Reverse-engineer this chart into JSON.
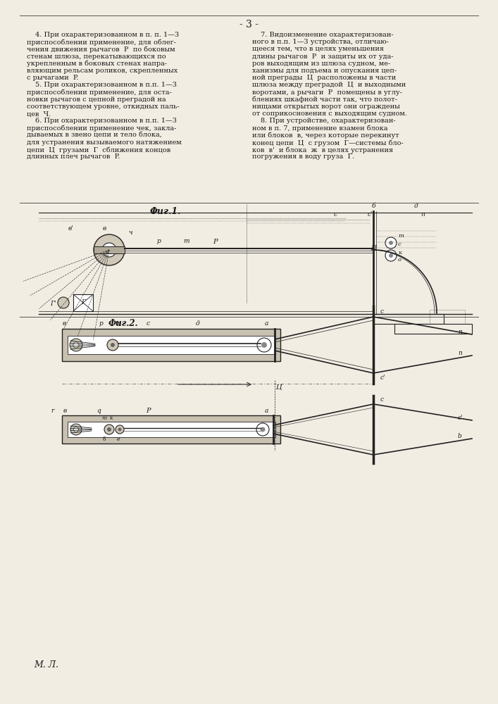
{
  "page_number": "- 3 -",
  "background_color": "#f2ede3",
  "text_color": "#1a1a1a",
  "line_color": "#222222",
  "fig1_label": "Φиг.1.",
  "fig2_label": "Фиг.2.",
  "footer_text": "М. Л.",
  "col1_lines": [
    [
      "4. При охарактеризованном в п. п. 1—3",
      true
    ],
    [
      "приспособлении применение, для облег-",
      false
    ],
    [
      "чения движения рычагов  Р  по боковым",
      false
    ],
    [
      "стенам шлюза, перекатывающихся по",
      false
    ],
    [
      "укрепленным в боковых стенах напра-",
      false
    ],
    [
      "вляющим рельсам роликов, скрепленных",
      false
    ],
    [
      "с рычагами  P.",
      false
    ],
    [
      "5. При охарактеризованном в п.п. 1—3",
      true
    ],
    [
      "приспособлении применение, для оста-",
      false
    ],
    [
      "новки рычагов с цепной преградой на",
      false
    ],
    [
      "соответствующем уровне, откидных паль-",
      false
    ],
    [
      "цев  Ч.",
      false
    ],
    [
      "6. При охарактеризованном в п.п. 1—3",
      true
    ],
    [
      "приспособлении применение чек, закла-",
      false
    ],
    [
      "дываемых в звено цепи и тело блока,",
      false
    ],
    [
      "для устранения вызываемого натяжением",
      false
    ],
    [
      "цепи  Ц  грузами  Г  сближения концов",
      false
    ],
    [
      "длинных плеч рычагов  P.",
      false
    ]
  ],
  "col2_lines": [
    [
      "7. Видоизменение охарактеризован-",
      true
    ],
    [
      "ного в п.п. 1—3 устройства, отличаю-",
      false
    ],
    [
      "щееся тем, что в целях уменьшения",
      false
    ],
    [
      "длины рычагов  P  и защиты их от уда-",
      false
    ],
    [
      "ров выходящим из шлюза судном, ме-",
      false
    ],
    [
      "ханизмы для подъема и опускания цеп-",
      false
    ],
    [
      "ной преграды  Ц  расположены в части",
      false
    ],
    [
      "шлюза между преградой  Ц  и выходными",
      false
    ],
    [
      "воротами, а рычаги  P  помещены в углу-",
      false
    ],
    [
      "блениях шкафной части так, что полот-",
      false
    ],
    [
      "нищами открытых ворот они ограждены",
      false
    ],
    [
      "от соприкосновения с выходящим судном.",
      false
    ],
    [
      "8. При устройстве, охарактеризован-",
      true
    ],
    [
      "ном в п. 7, применение взамен блока",
      false
    ],
    [
      "или блоков  в, через которые перекинут",
      false
    ],
    [
      "конец цепи  Ц  с грузом  Г—системы бло-",
      false
    ],
    [
      "ков  в'  и блока  ж  в целях устранения",
      false
    ],
    [
      "погружения в воду груза  Г.",
      false
    ]
  ]
}
